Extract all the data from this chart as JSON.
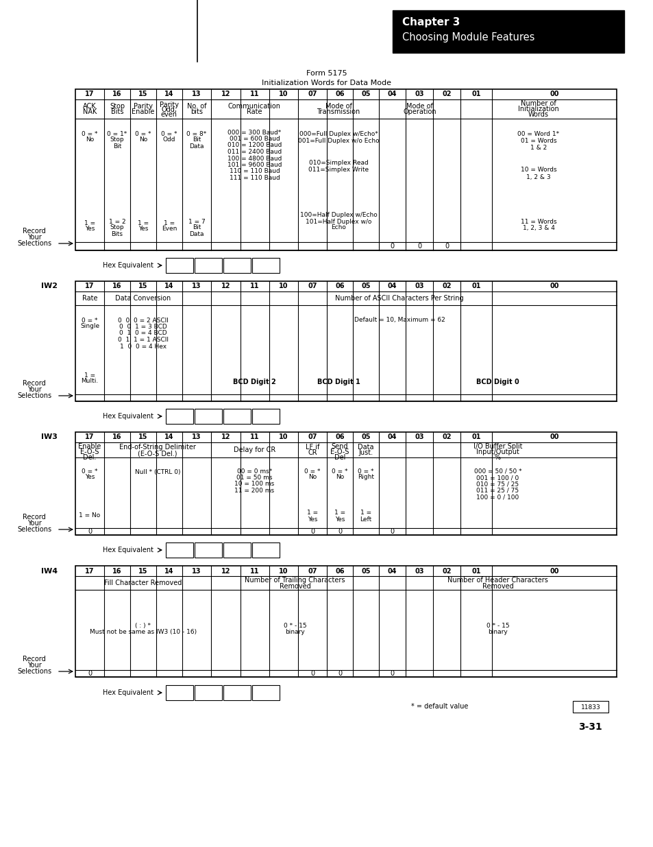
{
  "title_line1": "Chapter 3",
  "title_line2": "Choosing Module Features",
  "form_title": "Form 5175",
  "form_subtitle": "Initialization Words for Data Mode",
  "page_num": "3-31",
  "figure_num": "11833",
  "background": "#ffffff",
  "header_bg": "#000000",
  "header_fg": "#ffffff",
  "bit_labels": [
    "17",
    "16",
    "15",
    "14",
    "13",
    "12",
    "11",
    "10",
    "07",
    "06",
    "05",
    "04",
    "03",
    "02",
    "01",
    "00"
  ]
}
